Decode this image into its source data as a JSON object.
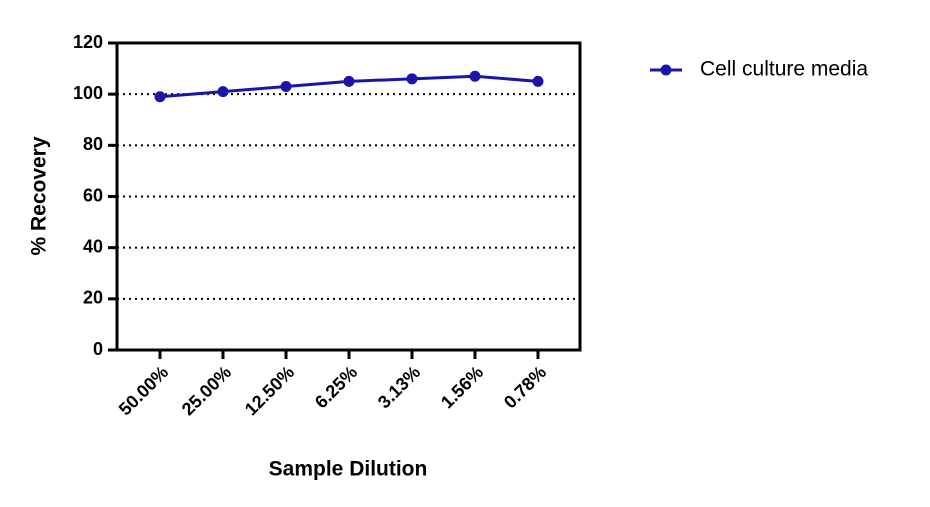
{
  "chart_data": {
    "type": "line",
    "x_label": "Sample Dilution",
    "y_label": "% Recovery",
    "categories": [
      "50.00%",
      "25.00%",
      "12.50%",
      "6.25%",
      "3.13%",
      "1.56%",
      "0.78%"
    ],
    "series": [
      {
        "name": "Cell culture media",
        "color": "#1a16a8",
        "values": [
          99,
          101,
          103,
          105,
          106,
          107,
          105
        ]
      }
    ],
    "ylim": [
      0,
      120
    ],
    "yticks": [
      0,
      20,
      40,
      60,
      80,
      100,
      120
    ],
    "grid": true,
    "legend": "right"
  }
}
